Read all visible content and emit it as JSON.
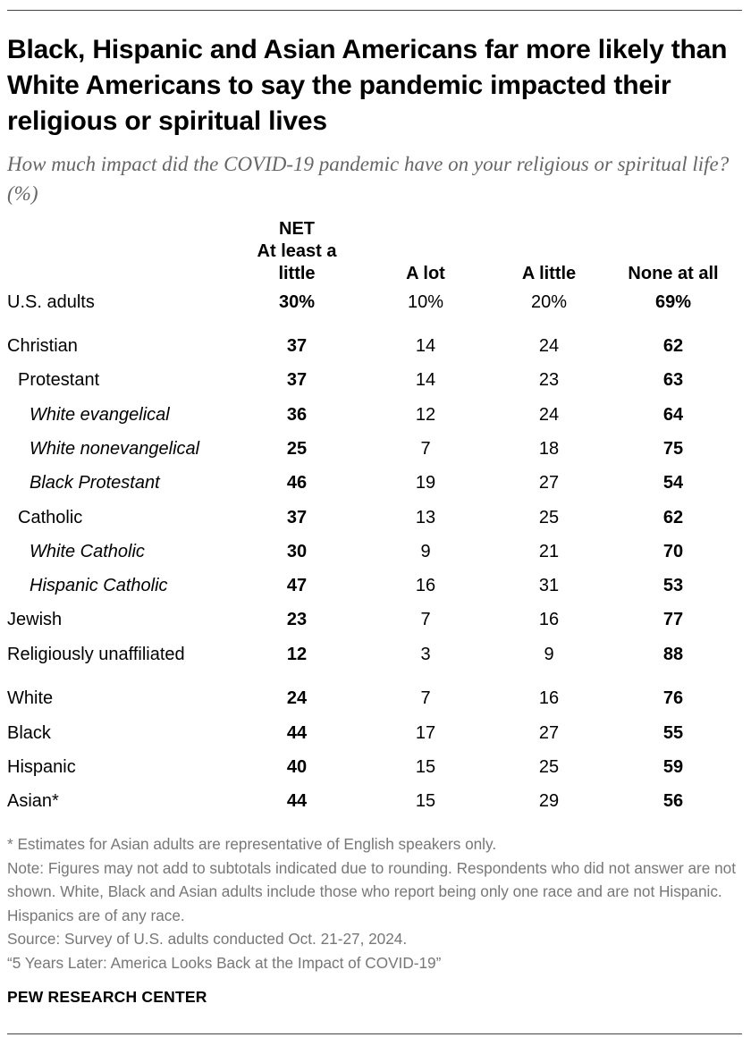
{
  "title": "Black, Hispanic and Asian Americans far more likely than White Americans to say the pandemic impacted their religious or spiritual lives",
  "subtitle": "How much impact did the COVID-19 pandemic have on your religious or spiritual life? (%)",
  "chart_data": {
    "type": "table",
    "columns": [
      {
        "key": "net",
        "label_lines": [
          "NET",
          "At least a",
          "little"
        ]
      },
      {
        "key": "lot",
        "label_lines": [
          "A lot"
        ]
      },
      {
        "key": "little",
        "label_lines": [
          "A little"
        ]
      },
      {
        "key": "none",
        "label_lines": [
          "None at all"
        ]
      }
    ],
    "rows": [
      {
        "label": "U.S. adults",
        "indent": 0,
        "net": "30%",
        "lot": "10%",
        "little": "20%",
        "none": "69%"
      },
      {
        "label": "Christian",
        "indent": 0,
        "net": "37",
        "lot": "14",
        "little": "24",
        "none": "62"
      },
      {
        "label": "Protestant",
        "indent": 1,
        "net": "37",
        "lot": "14",
        "little": "23",
        "none": "63"
      },
      {
        "label": "White evangelical",
        "indent": 2,
        "net": "36",
        "lot": "12",
        "little": "24",
        "none": "64"
      },
      {
        "label": "White nonevangelical",
        "indent": 2,
        "net": "25",
        "lot": "7",
        "little": "18",
        "none": "75"
      },
      {
        "label": "Black Protestant",
        "indent": 2,
        "net": "46",
        "lot": "19",
        "little": "27",
        "none": "54"
      },
      {
        "label": "Catholic",
        "indent": 1,
        "net": "37",
        "lot": "13",
        "little": "25",
        "none": "62"
      },
      {
        "label": "White Catholic",
        "indent": 2,
        "net": "30",
        "lot": "9",
        "little": "21",
        "none": "70"
      },
      {
        "label": "Hispanic Catholic",
        "indent": 2,
        "net": "47",
        "lot": "16",
        "little": "31",
        "none": "53"
      },
      {
        "label": "Jewish",
        "indent": 0,
        "net": "23",
        "lot": "7",
        "little": "16",
        "none": "77"
      },
      {
        "label": "Religiously unaffiliated",
        "indent": 0,
        "net": "12",
        "lot": "3",
        "little": "9",
        "none": "88"
      },
      {
        "label": "White",
        "indent": 0,
        "net": "24",
        "lot": "7",
        "little": "16",
        "none": "76"
      },
      {
        "label": "Black",
        "indent": 0,
        "net": "44",
        "lot": "17",
        "little": "27",
        "none": "55"
      },
      {
        "label": "Hispanic",
        "indent": 0,
        "net": "40",
        "lot": "15",
        "little": "25",
        "none": "59"
      },
      {
        "label": "Asian*",
        "indent": 0,
        "net": "44",
        "lot": "15",
        "little": "29",
        "none": "56"
      }
    ]
  },
  "notes": {
    "asterisk": "* Estimates for Asian adults are representative of English speakers only.",
    "note": "Note: Figures may not add to subtotals indicated due to rounding. Respondents who did not answer are not shown. White, Black and Asian adults include those who report being only one race and are not Hispanic. Hispanics are of any race.",
    "source": "Source: Survey of U.S. adults conducted Oct. 21-27, 2024.",
    "report": "“5 Years Later: America Looks Back at the Impact of COVID-19”"
  },
  "brand": "PEW RESEARCH CENTER"
}
